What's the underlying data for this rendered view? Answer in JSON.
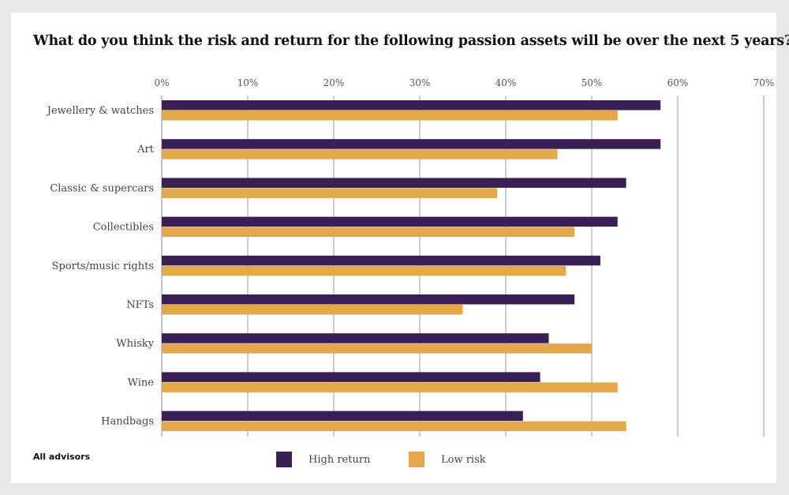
{
  "chart_data": {
    "type": "bar",
    "orientation": "horizontal",
    "title": "What do you think the risk and return for the following passion assets will be over the next 5 years?",
    "categories": [
      "Jewellery & watches",
      "Art",
      "Classic & supercars",
      "Collectibles",
      "Sports/music rights",
      "NFTs",
      "Whisky",
      "Wine",
      "Handbags"
    ],
    "series": [
      {
        "name": "High return",
        "color": "#3a1f55",
        "values": [
          58,
          58,
          54,
          53,
          51,
          48,
          45,
          44,
          42
        ]
      },
      {
        "name": "Low risk",
        "color": "#e3a84b",
        "values": [
          53,
          46,
          39,
          48,
          47,
          35,
          50,
          53,
          54
        ]
      }
    ],
    "x_ticks": [
      "0%",
      "10%",
      "20%",
      "30%",
      "40%",
      "50%",
      "60%",
      "70%"
    ],
    "xlim": [
      0,
      70
    ],
    "grid": true,
    "xlabel": "",
    "ylabel": "",
    "note": "All advisors",
    "legend_position": "bottom-center"
  }
}
